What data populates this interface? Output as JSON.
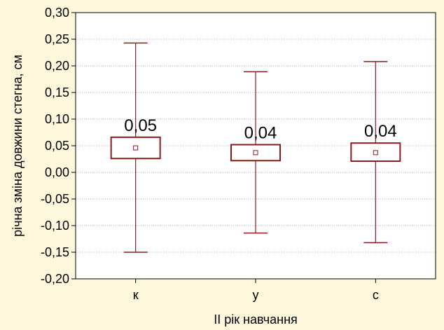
{
  "chart_data": {
    "type": "box",
    "title": "",
    "xlabel": "II рік навчання",
    "ylabel": "річна зміна довжини стегна, см",
    "categories": [
      "к",
      "у",
      "с"
    ],
    "series": [
      {
        "mean": [
          0.046,
          0.037,
          0.037
        ],
        "box_low": [
          0.026,
          0.022,
          0.021
        ],
        "box_high": [
          0.066,
          0.052,
          0.055
        ],
        "whisker_low": [
          -0.15,
          -0.114,
          -0.132
        ],
        "whisker_high": [
          0.243,
          0.189,
          0.208
        ]
      }
    ],
    "data_labels": [
      "0,05",
      "0,04",
      "0,04"
    ],
    "ylim": [
      -0.2,
      0.3
    ],
    "yticks": [
      0.3,
      0.25,
      0.2,
      0.15,
      0.1,
      0.05,
      0.0,
      -0.05,
      -0.1,
      -0.15,
      -0.2
    ],
    "ytick_labels": [
      "0,30",
      "0,25",
      "0,20",
      "0,15",
      "0,10",
      "0,05",
      "0,00",
      "-0,05",
      "-0,10",
      "-0,15",
      "-0,20"
    ],
    "grid": true,
    "colors": {
      "background": "#fdf7dc",
      "plot_background": "#ffffff",
      "box": "#8b1a1a",
      "grid": "#b0b0b0",
      "axis": "#000000"
    }
  }
}
